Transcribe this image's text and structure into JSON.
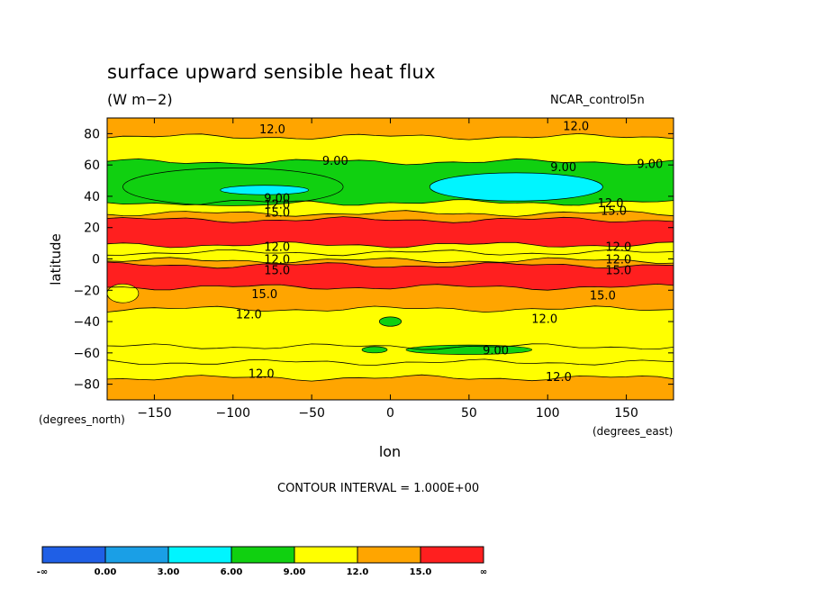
{
  "chart_data": {
    "type": "heatmap",
    "title": "surface upward sensible heat flux",
    "units": "(W m−2)",
    "dataset": "NCAR_control5n",
    "xlabel": "lon",
    "ylabel": "latitude",
    "x_axis_unit": "(degrees_east)",
    "y_axis_unit": "(degrees_north)",
    "xlim": [
      -180,
      180
    ],
    "ylim": [
      -90,
      90
    ],
    "x_ticks": [
      -150,
      -100,
      -50,
      0,
      50,
      100,
      150
    ],
    "x_tick_labels": [
      "−150",
      "−100",
      "−50",
      "0",
      "50",
      "100",
      "150"
    ],
    "y_ticks": [
      80,
      60,
      40,
      20,
      0,
      -20,
      -40,
      -60,
      -80
    ],
    "y_tick_labels": [
      "80",
      "60",
      "40",
      "20",
      "0",
      "−20",
      "−40",
      "−60",
      "−80"
    ],
    "contour_interval": "CONTOUR INTERVAL = 1.000E+00",
    "colorbar": {
      "levels": [
        "-∞",
        "0.00",
        "3.00",
        "6.00",
        "9.00",
        "12.0",
        "15.0",
        "∞"
      ],
      "colors": [
        "#1f5fe6",
        "#1a9fe6",
        "#00f5ff",
        "#10d010",
        "#ffff00",
        "#ffa500",
        "#ff1f1f"
      ]
    },
    "latitude_bands": [
      {
        "from": 90,
        "to": 78,
        "level": 5
      },
      {
        "from": 78,
        "to": 62,
        "level": 4
      },
      {
        "from": 62,
        "to": 36,
        "level": 3
      },
      {
        "from": 36,
        "to": 29,
        "level": 4
      },
      {
        "from": 29,
        "to": 25,
        "level": 5
      },
      {
        "from": 25,
        "to": 9,
        "level": 6
      },
      {
        "from": 9,
        "to": 4,
        "level": 4
      },
      {
        "from": 4,
        "to": -1,
        "level": 4
      },
      {
        "from": -1,
        "to": -4,
        "level": 5
      },
      {
        "from": -4,
        "to": -18,
        "level": 6
      },
      {
        "from": -18,
        "to": -32,
        "level": 5
      },
      {
        "from": -32,
        "to": -56,
        "level": 4
      },
      {
        "from": -56,
        "to": -66,
        "level": 4
      },
      {
        "from": -66,
        "to": -76,
        "level": 4
      },
      {
        "from": -76,
        "to": -90,
        "level": 5
      }
    ],
    "patches": [
      {
        "lon": -100,
        "lat": 46,
        "rx": 70,
        "ry": 12,
        "level": 3
      },
      {
        "lon": 80,
        "lat": 46,
        "rx": 55,
        "ry": 9,
        "level": 2
      },
      {
        "lon": -80,
        "lat": 44,
        "rx": 28,
        "ry": 3,
        "level": 2
      },
      {
        "lon": 0,
        "lat": -40,
        "rx": 7,
        "ry": 3,
        "level": 3
      },
      {
        "lon": 50,
        "lat": -58,
        "rx": 40,
        "ry": 3,
        "level": 3
      },
      {
        "lon": -10,
        "lat": -58,
        "rx": 8,
        "ry": 2,
        "level": 3
      },
      {
        "lon": -170,
        "lat": -22,
        "rx": 10,
        "ry": 6,
        "level": 4
      }
    ],
    "contour_labels": [
      {
        "text": "12.0",
        "lon": -75,
        "lat": 83
      },
      {
        "text": "12.0",
        "lon": 118,
        "lat": 85
      },
      {
        "text": "9.00",
        "lon": -35,
        "lat": 63
      },
      {
        "text": "9.00",
        "lon": 110,
        "lat": 59
      },
      {
        "text": "9.00",
        "lon": 165,
        "lat": 61
      },
      {
        "text": "9.00",
        "lon": -72,
        "lat": 39
      },
      {
        "text": "12.0",
        "lon": -72,
        "lat": 35
      },
      {
        "text": "15.0",
        "lon": -72,
        "lat": 30
      },
      {
        "text": "12.0",
        "lon": 140,
        "lat": 36
      },
      {
        "text": "15.0",
        "lon": 142,
        "lat": 31
      },
      {
        "text": "12.0",
        "lon": -72,
        "lat": 8
      },
      {
        "text": "12.0",
        "lon": 145,
        "lat": 8
      },
      {
        "text": "12.0",
        "lon": -72,
        "lat": 0
      },
      {
        "text": "12.0",
        "lon": 145,
        "lat": 0
      },
      {
        "text": "15.0",
        "lon": -72,
        "lat": -7
      },
      {
        "text": "15.0",
        "lon": 145,
        "lat": -7
      },
      {
        "text": "15.0",
        "lon": -80,
        "lat": -22
      },
      {
        "text": "15.0",
        "lon": 135,
        "lat": -23
      },
      {
        "text": "12.0",
        "lon": -90,
        "lat": -35
      },
      {
        "text": "12.0",
        "lon": 98,
        "lat": -38
      },
      {
        "text": "9.00",
        "lon": 67,
        "lat": -58
      },
      {
        "text": "12.0",
        "lon": -82,
        "lat": -73
      },
      {
        "text": "12.0",
        "lon": 107,
        "lat": -75
      }
    ]
  }
}
